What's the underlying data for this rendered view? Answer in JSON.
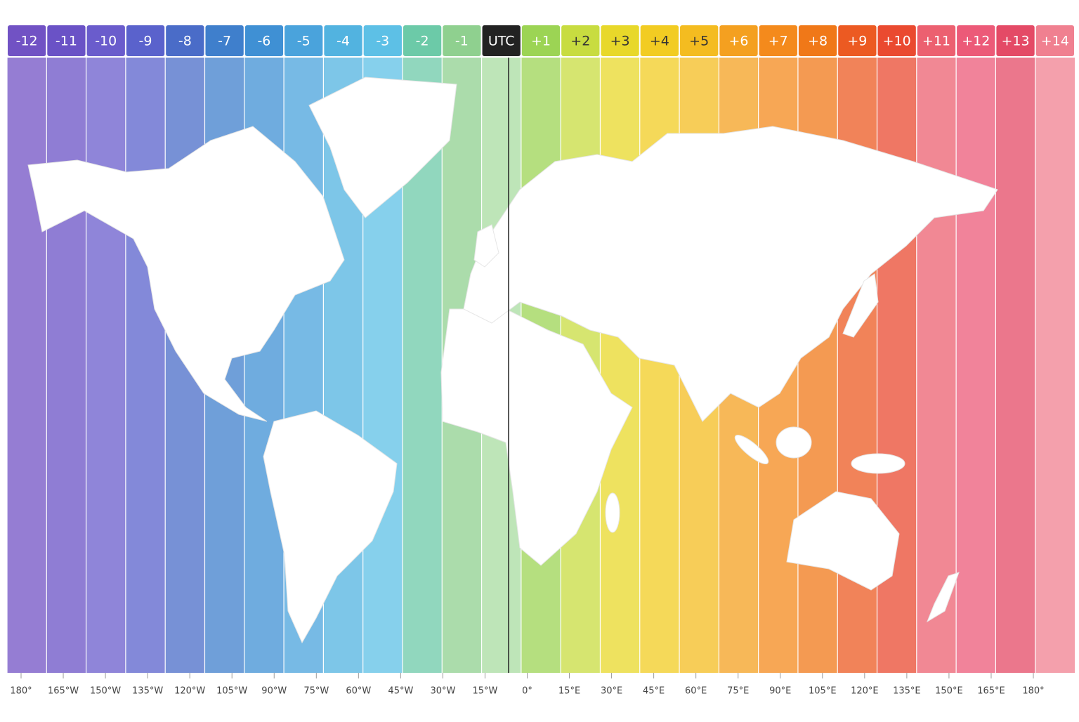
{
  "header": {
    "zones": [
      {
        "label": "-12",
        "color": "#7152c4"
      },
      {
        "label": "-11",
        "color": "#6a52c6"
      },
      {
        "label": "-10",
        "color": "#6a5ccc"
      },
      {
        "label": "-9",
        "color": "#5a62cc"
      },
      {
        "label": "-8",
        "color": "#4a6cc8"
      },
      {
        "label": "-7",
        "color": "#3f7fcc"
      },
      {
        "label": "-6",
        "color": "#3f90d4"
      },
      {
        "label": "-5",
        "color": "#4aa3dc"
      },
      {
        "label": "-4",
        "color": "#52b3e0"
      },
      {
        "label": "-3",
        "color": "#5dc0e6"
      },
      {
        "label": "-2",
        "color": "#6ccaa8"
      },
      {
        "label": "-1",
        "color": "#8fd08f"
      },
      {
        "label": "UTC",
        "color": "#a8dca0",
        "header_color": "#222222"
      },
      {
        "label": "+1",
        "color": "#9cd454"
      },
      {
        "label": "+2",
        "color": "#c8dc40"
      },
      {
        "label": "+3",
        "color": "#e8d82a"
      },
      {
        "label": "+4",
        "color": "#f2cc22"
      },
      {
        "label": "+5",
        "color": "#f4bc20"
      },
      {
        "label": "+6",
        "color": "#f4a020"
      },
      {
        "label": "+7",
        "color": "#f48a1c"
      },
      {
        "label": "+8",
        "color": "#f07818"
      },
      {
        "label": "+9",
        "color": "#ec5a22"
      },
      {
        "label": "+10",
        "color": "#ea4a30"
      },
      {
        "label": "+11",
        "color": "#ec6070"
      },
      {
        "label": "+12",
        "color": "#ec5a78"
      },
      {
        "label": "+13",
        "color": "#e44a66"
      },
      {
        "label": "+14",
        "color": "#f08090"
      }
    ]
  },
  "footer": {
    "longitudes": [
      "180°",
      "165°W",
      "150°W",
      "135°W",
      "120°W",
      "105°W",
      "90°W",
      "75°W",
      "60°W",
      "45°W",
      "30°W",
      "15°W",
      "0°",
      "15°E",
      "30°E",
      "45°E",
      "60°E",
      "75°E",
      "90°E",
      "105°E",
      "120°E",
      "135°E",
      "150°E",
      "165°E",
      "180°"
    ]
  }
}
